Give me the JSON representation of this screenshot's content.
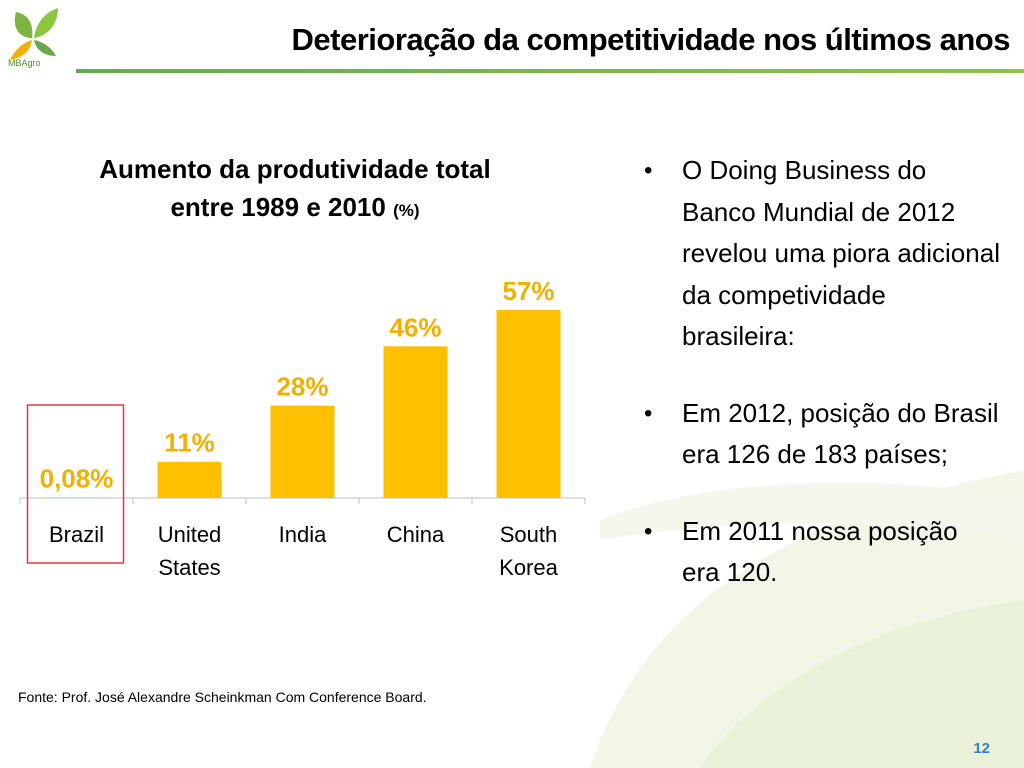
{
  "header": {
    "logo_text": "MBAgro",
    "title": "Deterioração da competitividade nos últimos anos"
  },
  "chart_title": {
    "line1": "Aumento da produtividade total",
    "line2": "entre 1989 e 2010",
    "unit": "(%)"
  },
  "chart_data": {
    "type": "bar",
    "title": "Aumento da produtividade total entre 1989 e 2010 (%)",
    "categories": [
      "Brazil",
      "United States",
      "India",
      "China",
      "South Korea"
    ],
    "values": [
      0.08,
      11,
      28,
      46,
      57
    ],
    "value_labels": [
      "0,08%",
      "11%",
      "28%",
      "46%",
      "57%"
    ],
    "ylim": [
      0,
      60
    ],
    "grid": false,
    "highlight_category": "Brazil",
    "colors": {
      "bar": "#FFC000",
      "label": "#F2B100",
      "highlight_box": "#E03C3C",
      "axis": "#BFBFBF"
    }
  },
  "source": "Fonte: Prof. José Alexandre Scheinkman Com Conference Board.",
  "bullets": [
    "O Doing Business do Banco Mundial de 2012 revelou uma piora adicional da competividade brasileira:",
    "Em 2012, posição do Brasil era 126 de 183 países;",
    "Em 2011 nossa posição era 120."
  ],
  "bullet_glyph": "•",
  "page_number": "12",
  "colors": {
    "accent_green": "#7CB342",
    "page_number": "#3A7FC1"
  }
}
